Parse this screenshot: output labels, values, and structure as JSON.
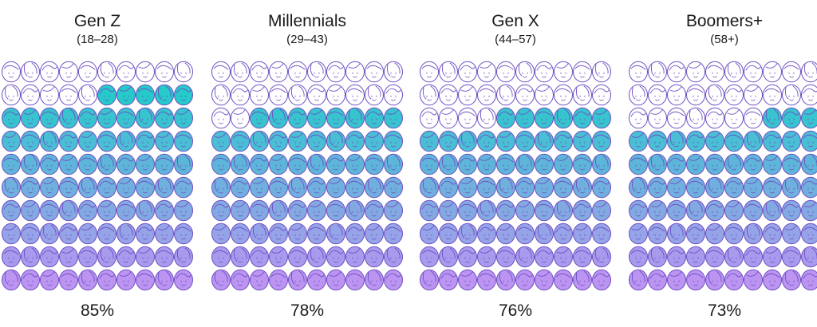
{
  "chart_data": {
    "type": "pictogram",
    "grid": {
      "rows": 10,
      "cols": 10
    },
    "colors": {
      "outline": "#6f4fc2",
      "fill_top": "#12c6c6",
      "fill_bottom": "#b58cf0"
    },
    "icon": "face-icon",
    "panels": [
      {
        "title": "Gen Z",
        "subtitle": "(18–28)",
        "value": 85,
        "label": "85%"
      },
      {
        "title": "Millennials",
        "subtitle": "(29–43)",
        "value": 78,
        "label": "78%"
      },
      {
        "title": "Gen X",
        "subtitle": "(44–57)",
        "value": 76,
        "label": "76%"
      },
      {
        "title": "Boomers+",
        "subtitle": "(58+)",
        "value": 73,
        "label": "73%"
      }
    ]
  }
}
